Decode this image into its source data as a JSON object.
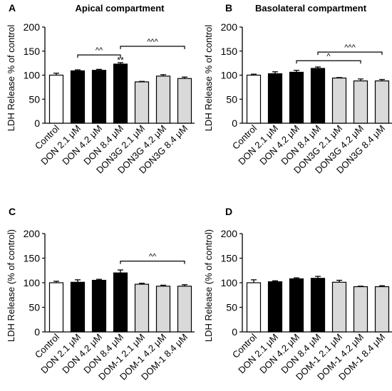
{
  "figure": {
    "panel_letters": [
      "A",
      "B",
      "C",
      "D"
    ]
  },
  "colors": {
    "control": "#ffffff",
    "don": "#000000",
    "conjugate": "#d9d9d9",
    "stroke": "#000000"
  },
  "chart_data": [
    {
      "panel": "A",
      "type": "bar",
      "title": "Apical compartment",
      "ylabel": "LDH Release % of control",
      "ylim": [
        0,
        200
      ],
      "yticks": [
        0,
        50,
        100,
        150,
        200
      ],
      "categories": [
        "Control",
        "DON 2.1 μM",
        "DON 4.2 μM",
        "DON 8.4 μM",
        "DON3G 2.1 μM",
        "DON3G 4.2 μM",
        "DON3G 8.4 μM"
      ],
      "values": [
        100,
        109,
        110,
        123,
        86,
        98,
        93
      ],
      "errors": [
        4,
        2,
        2,
        3,
        1,
        3,
        3
      ],
      "groups": [
        "control",
        "don",
        "don",
        "don",
        "conjugate",
        "conjugate",
        "conjugate"
      ],
      "annotations": [
        {
          "text": "**",
          "over": 3,
          "value": 131
        },
        {
          "text": "^^",
          "from": 1,
          "to": 3,
          "value": 142
        },
        {
          "text": "^^^",
          "from": 3,
          "to": 6,
          "value": 160
        }
      ]
    },
    {
      "panel": "B",
      "type": "bar",
      "title": "Basolateral compartment",
      "ylabel": "LDH Release % of control",
      "ylim": [
        0,
        200
      ],
      "yticks": [
        0,
        50,
        100,
        150,
        200
      ],
      "categories": [
        "Control",
        "DON 2.1 μM",
        "DON 4.2 μM",
        "DON 8.4 μM",
        "DON3G 2.1 μM",
        "DON3G 4.2 μM",
        "DON3G 8.4 μM"
      ],
      "values": [
        100,
        103,
        106,
        114,
        94,
        88,
        88
      ],
      "errors": [
        2,
        4,
        4,
        3,
        1,
        4,
        3
      ],
      "groups": [
        "control",
        "don",
        "don",
        "don",
        "conjugate",
        "conjugate",
        "conjugate"
      ],
      "annotations": [
        {
          "text": "^",
          "from": 2,
          "to": 5,
          "value": 130
        },
        {
          "text": "^^^",
          "from": 3,
          "to": 6,
          "value": 148
        }
      ]
    },
    {
      "panel": "C",
      "type": "bar",
      "title": "",
      "ylabel": "LDH Release (% of control)",
      "ylim": [
        0,
        200
      ],
      "yticks": [
        0,
        50,
        100,
        150,
        200
      ],
      "categories": [
        "Control",
        "DON 2.1 μM",
        "DON 4.2 μM",
        "DON 8.4 μM",
        "DOM-1 2.1 μM",
        "DOM-1 4.2 μM",
        "DOM-1 8.4 μM"
      ],
      "values": [
        100,
        101,
        105,
        120,
        97,
        93,
        93
      ],
      "errors": [
        3,
        5,
        2,
        6,
        2,
        2,
        3
      ],
      "groups": [
        "control",
        "don",
        "don",
        "don",
        "conjugate",
        "conjugate",
        "conjugate"
      ],
      "annotations": [
        {
          "text": "^^",
          "from": 3,
          "to": 6,
          "value": 144
        }
      ]
    },
    {
      "panel": "D",
      "type": "bar",
      "title": "",
      "ylabel": "LDH Release (% of control)",
      "ylim": [
        0,
        200
      ],
      "yticks": [
        0,
        50,
        100,
        150,
        200
      ],
      "categories": [
        "Control",
        "DON 2.1 μM",
        "DON 4.2 μM",
        "DON 8.4 μM",
        "DOM-1 2.1 μM",
        "DOM-1 4.2 μM",
        "DOM-1 8.4 μM"
      ],
      "values": [
        100,
        102,
        108,
        109,
        101,
        92,
        92
      ],
      "errors": [
        6,
        2,
        2,
        4,
        4,
        1,
        2
      ],
      "groups": [
        "control",
        "don",
        "don",
        "don",
        "conjugate",
        "conjugate",
        "conjugate"
      ],
      "annotations": []
    }
  ]
}
